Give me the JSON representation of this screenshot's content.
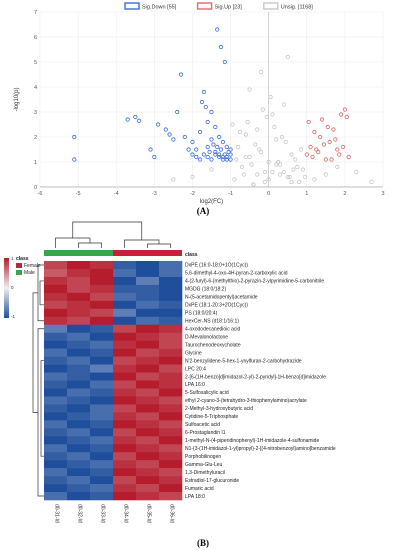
{
  "panel_a_label": "(A)",
  "panel_b_label": "(B)",
  "chart_data": [
    {
      "type": "scatter",
      "xlabel": "log2(FC)",
      "ylabel": "-log10(p)",
      "xlim": [
        -6,
        3
      ],
      "ylim": [
        0,
        7
      ],
      "xticks": [
        -6,
        -5,
        -4,
        -3,
        -2,
        -1,
        0,
        1,
        2,
        3
      ],
      "yticks": [
        0,
        1,
        2,
        3,
        4,
        5,
        6,
        7
      ],
      "grid": true,
      "legend_position": "top",
      "legend": [
        {
          "label": "Sig.Down [55]",
          "color": "#3a6fd8"
        },
        {
          "label": "Sig.Up [23]",
          "color": "#e06a6a"
        },
        {
          "label": "Unsig. [1168]",
          "color": "#c8c8c8"
        }
      ],
      "series": [
        {
          "name": "Sig.Down [55]",
          "color": "#3a6fd8",
          "x": [
            -5.1,
            -5.1,
            -3.7,
            -3.5,
            -3.4,
            -3.1,
            -3.0,
            -2.9,
            -2.7,
            -2.6,
            -2.5,
            -2.4,
            -2.3,
            -2.2,
            -2.0,
            -1.9,
            -1.8,
            -1.75,
            -1.7,
            -1.65,
            -1.6,
            -1.6,
            -1.55,
            -1.5,
            -1.5,
            -1.45,
            -1.4,
            -1.4,
            -1.35,
            -1.3,
            -1.3,
            -1.25,
            -1.2,
            -1.2,
            -1.15,
            -1.1,
            -1.1,
            -1.05,
            -1.0,
            -1.0,
            -2.1,
            -2.0,
            -1.9,
            -1.8,
            -1.7,
            -1.6,
            -1.5,
            -1.4,
            -1.3,
            -1.2,
            -1.1,
            -1.0,
            -1.35,
            -1.25,
            -1.15
          ],
          "y": [
            1.1,
            2.0,
            2.7,
            2.8,
            2.65,
            1.5,
            1.2,
            2.5,
            2.3,
            2.1,
            1.9,
            3.0,
            4.5,
            2.0,
            1.8,
            1.5,
            2.2,
            3.4,
            3.8,
            3.2,
            1.6,
            2.6,
            1.4,
            1.9,
            3.0,
            1.7,
            1.3,
            2.4,
            1.6,
            1.2,
            2.0,
            1.5,
            1.1,
            1.8,
            1.3,
            1.2,
            1.6,
            1.4,
            1.1,
            1.5,
            1.5,
            1.3,
            1.2,
            1.1,
            1.3,
            1.2,
            1.1,
            1.4,
            1.3,
            1.2,
            1.1,
            1.3,
            6.3,
            5.6,
            5.0
          ]
        },
        {
          "name": "Sig.Up [23]",
          "color": "#e06a6a",
          "x": [
            1.0,
            1.1,
            1.2,
            1.3,
            1.4,
            1.5,
            1.6,
            1.7,
            1.8,
            1.9,
            2.0,
            2.1,
            1.05,
            1.15,
            1.25,
            1.35,
            1.45,
            1.55,
            1.65,
            1.75,
            1.85,
            1.95,
            2.05
          ],
          "y": [
            1.3,
            1.6,
            2.2,
            1.4,
            2.7,
            1.1,
            1.8,
            2.3,
            1.5,
            2.9,
            3.1,
            1.2,
            2.6,
            1.2,
            1.5,
            2.0,
            1.7,
            2.4,
            1.1,
            1.9,
            1.3,
            1.6,
            2.8
          ]
        },
        {
          "name": "Unsig. [1168]",
          "color": "#c8c8c8",
          "x": [
            -0.9,
            -0.7,
            -0.5,
            -0.3,
            -0.1,
            0.1,
            0.3,
            0.5,
            0.7,
            0.9,
            -0.8,
            -0.6,
            -0.4,
            -0.2,
            0.0,
            0.2,
            0.4,
            0.6,
            0.8,
            -0.95,
            -0.65,
            -0.35,
            -0.05,
            0.25,
            0.55,
            0.85,
            -0.75,
            -0.45,
            -0.15,
            0.15,
            0.45,
            0.75,
            -0.85,
            -0.55,
            -0.25,
            0.05,
            0.35,
            0.65,
            0.95,
            -0.5,
            -0.2,
            0.1,
            0.4,
            -0.6,
            0.3,
            0.0,
            -0.3,
            0.6,
            -0.1,
            0.2,
            1.2,
            1.5,
            1.8,
            2.3,
            2.7,
            -1.5,
            -2.0,
            -2.5,
            0.5,
            -0.4
          ],
          "y": [
            0.3,
            0.8,
            1.2,
            0.5,
            0.2,
            0.6,
            0.9,
            0.4,
            1.1,
            0.7,
            1.6,
            2.1,
            0.1,
            1.4,
            0.3,
            1.9,
            0.6,
            1.3,
            0.2,
            2.5,
            0.5,
            1.7,
            2.8,
            1.0,
            0.4,
            1.5,
            2.2,
            0.9,
            3.1,
            2.4,
            1.8,
            0.8,
            1.1,
            2.6,
            1.5,
            3.6,
            2.0,
            0.7,
            0.4,
            3.9,
            4.6,
            2.9,
            3.3,
            1.2,
            0.5,
            1.0,
            2.3,
            0.2,
            0.6,
            0.9,
            0.3,
            0.5,
            0.8,
            0.6,
            0.2,
            0.7,
            0.4,
            0.3,
            5.2,
            0.1
          ]
        }
      ]
    },
    {
      "type": "heatmap",
      "legend": {
        "title": "class",
        "items": [
          {
            "label": "Female",
            "color": "#c8203c"
          },
          {
            "label": "Male",
            "color": "#3aa64a"
          }
        ]
      },
      "colorbar_ticks": [
        "1",
        "0",
        "-1"
      ],
      "color_scale": {
        "low": "#1f4e9c",
        "mid": "#f0f0f0",
        "high": "#b51c2c"
      },
      "columns": [
        "d0-31-Id",
        "d0-32-Id",
        "d0-33-Id",
        "d0-34-Id",
        "d0-35-Id",
        "d0-36-Id"
      ],
      "column_class": [
        "Male",
        "Male",
        "Male",
        "Female",
        "Female",
        "Female"
      ],
      "rows": [
        "DxPE (16:0-18:0+1O(1Cyc))",
        "5,6-dimethyl-4-oxo-4H-pyran-2-carboxylic acid",
        "4-(2-furyl)-6-(methylthio)-2-pyrazin-2-ylpyrimidine-5-carbonitrile",
        "MGDG (18:0/18:2)",
        "N-(5-acetamidopentyl)acetamide",
        "DxPE (18:1-20:3+2O(1Cyc))",
        "PS (18:0/20:4)",
        "HexCer-NS (d18:1/16:1)",
        "4-oxododecanedioic acid",
        "D-Mevalonolactone",
        "Taurochenodeoxycholate",
        "Glycine",
        "N'2-benzylidene-5-hex-1-ynylfuran-2-carbohydrazide",
        "LPC 20:4",
        "2-[6-(1H-benzo[d]imidazol-2-yl)-2-pyridyl]-1H-benzo[d]imidazole",
        "LPA 16:0",
        "5-Sulfosalicylic acid",
        "ethyl 2-cyano-3-(tetrahydro-3-thiophenylamino)acrylate",
        "2-Methyl-3-hydroxybutyric acid",
        "Cytidine-5-Triphosphate",
        "Sulfoacetic acid",
        "6-Prostaglandin I1",
        "1-methyl-N-(4-piperidinophenyl)-1H-imidazole-4-sulfonamide",
        "N1-{3-(1H-imidazol-1-yl)propyl}-2-[(4-nitrobenzoyl)amino]benzamide",
        "Porphobilinogen",
        "Gamma-Glu-Leu",
        "1,3-Dimethyluracil",
        "Estradiol-17-glucuronide",
        "Fumaric acid",
        "LPA 18:0"
      ],
      "values": [
        [
          0.8,
          1.0,
          0.9,
          -0.9,
          -1.0,
          -0.8
        ],
        [
          0.7,
          0.9,
          1.0,
          -0.8,
          -1.0,
          -0.8
        ],
        [
          0.9,
          0.8,
          1.0,
          -1.0,
          -0.7,
          -1.0
        ],
        [
          1.0,
          0.8,
          0.9,
          -0.9,
          -0.9,
          -1.0
        ],
        [
          0.9,
          1.0,
          0.8,
          -0.8,
          -0.9,
          -1.0
        ],
        [
          0.8,
          0.9,
          1.0,
          -1.0,
          -0.8,
          -0.9
        ],
        [
          1.0,
          0.9,
          0.8,
          -0.7,
          -1.0,
          -1.0
        ],
        [
          0.9,
          0.8,
          1.0,
          -1.0,
          -0.8,
          -0.9
        ],
        [
          -0.7,
          -1.0,
          -0.9,
          0.8,
          1.0,
          0.9
        ],
        [
          -0.9,
          -0.8,
          -1.0,
          1.0,
          0.9,
          0.8
        ],
        [
          -1.0,
          -0.9,
          -0.8,
          0.9,
          1.0,
          0.8
        ],
        [
          -0.8,
          -1.0,
          -0.9,
          1.0,
          0.8,
          0.9
        ],
        [
          -0.9,
          -0.8,
          -1.0,
          0.8,
          0.9,
          1.0
        ],
        [
          -1.0,
          -0.9,
          -0.7,
          0.9,
          1.0,
          0.8
        ],
        [
          -0.8,
          -0.9,
          -1.0,
          1.0,
          0.8,
          0.9
        ],
        [
          -0.9,
          -1.0,
          -0.8,
          0.8,
          1.0,
          0.9
        ],
        [
          -1.0,
          -0.8,
          -0.9,
          0.9,
          0.8,
          1.0
        ],
        [
          -0.8,
          -0.9,
          -1.0,
          1.0,
          0.9,
          0.8
        ],
        [
          -0.9,
          -1.0,
          -0.8,
          0.8,
          1.0,
          0.9
        ],
        [
          -1.0,
          -0.9,
          -0.8,
          0.9,
          0.8,
          1.0
        ],
        [
          -0.8,
          -1.0,
          -0.9,
          1.0,
          0.9,
          0.8
        ],
        [
          -0.9,
          -0.8,
          -1.0,
          0.8,
          1.0,
          0.9
        ],
        [
          -1.0,
          -0.9,
          -0.8,
          0.9,
          0.8,
          1.0
        ],
        [
          -0.8,
          -1.0,
          -0.9,
          1.0,
          0.9,
          0.8
        ],
        [
          -0.9,
          -0.8,
          -1.0,
          0.8,
          1.0,
          0.9
        ],
        [
          -1.0,
          -0.9,
          -0.8,
          0.9,
          0.8,
          1.0
        ],
        [
          -0.8,
          -1.0,
          -0.9,
          1.0,
          0.9,
          0.8
        ],
        [
          -0.9,
          -0.8,
          -1.0,
          0.8,
          1.0,
          0.9
        ],
        [
          -1.0,
          -0.9,
          -0.8,
          0.9,
          0.8,
          1.0
        ],
        [
          -0.8,
          -1.0,
          -0.9,
          1.0,
          0.9,
          0.8
        ]
      ]
    }
  ]
}
